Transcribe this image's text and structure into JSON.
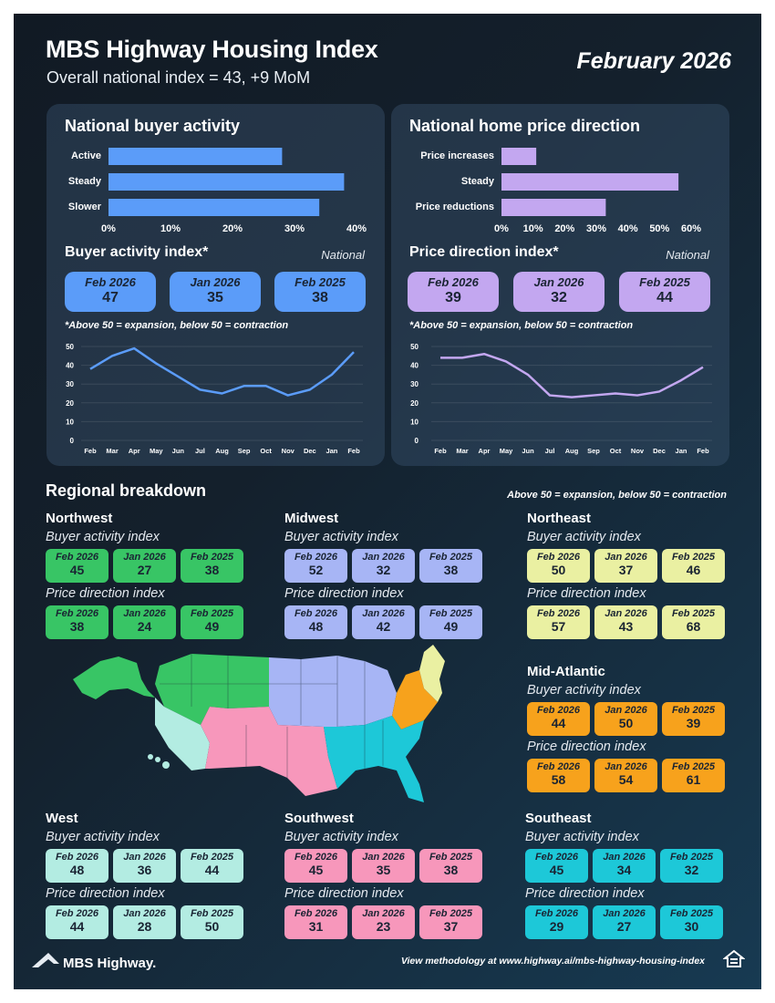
{
  "header": {
    "title": "MBS Highway Housing Index",
    "subtitle": "Overall national index = 43, +9 MoM",
    "date": "February 2026"
  },
  "colors": {
    "blue": "#5b9cf9",
    "purple": "#c3a7f0",
    "green": "#38c565",
    "periwinkle": "#a7b5f5",
    "yellow": "#eaf0a2",
    "orange": "#f7a21c",
    "mint": "#b3ece2",
    "pink": "#f797bb",
    "cyan": "#1dc8d8"
  },
  "buyer_panel": {
    "title": "National buyer activity",
    "index_title": "Buyer activity index*",
    "national": "National",
    "note": "*Above 50 = expansion, below 50 = contraction",
    "cards": [
      {
        "label": "Feb 2026",
        "value": "47"
      },
      {
        "label": "Jan 2026",
        "value": "35"
      },
      {
        "label": "Feb 2025",
        "value": "38"
      }
    ]
  },
  "price_panel": {
    "title": "National home price direction",
    "index_title": "Price direction index*",
    "national": "National",
    "note": "*Above 50 = expansion, below 50 = contraction",
    "cards": [
      {
        "label": "Feb 2026",
        "value": "39"
      },
      {
        "label": "Jan 2026",
        "value": "32"
      },
      {
        "label": "Feb 2025",
        "value": "44"
      }
    ]
  },
  "chart_data": [
    {
      "type": "bar",
      "orientation": "horizontal",
      "title": "National buyer activity",
      "categories": [
        "Active",
        "Steady",
        "Slower"
      ],
      "values": [
        28,
        38,
        34
      ],
      "xlim": [
        0,
        40
      ],
      "ticks": [
        "0%",
        "10%",
        "20%",
        "30%",
        "40%"
      ],
      "tick_values": [
        0,
        10,
        20,
        30,
        40
      ]
    },
    {
      "type": "bar",
      "orientation": "horizontal",
      "title": "National home price direction",
      "categories": [
        "Price increases",
        "Steady",
        "Price reductions"
      ],
      "values": [
        11,
        56,
        33
      ],
      "xlim": [
        0,
        60
      ],
      "ticks": [
        "0%",
        "10%",
        "20%",
        "30%",
        "40%",
        "50%",
        "60%"
      ],
      "tick_values": [
        0,
        10,
        20,
        30,
        40,
        50,
        60
      ]
    },
    {
      "type": "line",
      "title": "Buyer activity index",
      "x": [
        "Feb",
        "Mar",
        "Apr",
        "May",
        "Jun",
        "Jul",
        "Aug",
        "Sep",
        "Oct",
        "Nov",
        "Dec",
        "Jan",
        "Feb"
      ],
      "values": [
        38,
        45,
        49,
        41,
        34,
        27,
        25,
        29,
        29,
        24,
        27,
        35,
        47
      ],
      "ylim": [
        0,
        50
      ],
      "yticks": [
        "0",
        "10",
        "20",
        "30",
        "40",
        "50"
      ],
      "ytick_values": [
        0,
        10,
        20,
        30,
        40,
        50
      ]
    },
    {
      "type": "line",
      "title": "Price direction index",
      "x": [
        "Feb",
        "Mar",
        "Apr",
        "May",
        "Jun",
        "Jul",
        "Aug",
        "Sep",
        "Oct",
        "Nov",
        "Dec",
        "Jan",
        "Feb"
      ],
      "values": [
        44,
        44,
        46,
        42,
        35,
        24,
        23,
        24,
        25,
        24,
        26,
        32,
        39
      ],
      "ylim": [
        0,
        50
      ],
      "yticks": [
        "0",
        "10",
        "20",
        "30",
        "40",
        "50"
      ],
      "ytick_values": [
        0,
        10,
        20,
        30,
        40,
        50
      ]
    }
  ],
  "regional": {
    "title": "Regional breakdown",
    "note": "Above 50 = expansion, below 50 = contraction",
    "buyer_label": "Buyer activity index",
    "price_label": "Price direction index",
    "regions": [
      {
        "name": "Northwest",
        "color": "#38c565",
        "buyer": [
          {
            "label": "Feb 2026",
            "value": "45"
          },
          {
            "label": "Jan 2026",
            "value": "27"
          },
          {
            "label": "Feb 2025",
            "value": "38"
          }
        ],
        "price": [
          {
            "label": "Feb 2026",
            "value": "38"
          },
          {
            "label": "Jan 2026",
            "value": "24"
          },
          {
            "label": "Feb 2025",
            "value": "49"
          }
        ]
      },
      {
        "name": "Midwest",
        "color": "#a7b5f5",
        "buyer": [
          {
            "label": "Feb 2026",
            "value": "52"
          },
          {
            "label": "Jan 2026",
            "value": "32"
          },
          {
            "label": "Feb 2025",
            "value": "38"
          }
        ],
        "price": [
          {
            "label": "Feb 2026",
            "value": "48"
          },
          {
            "label": "Jan 2026",
            "value": "42"
          },
          {
            "label": "Feb 2025",
            "value": "49"
          }
        ]
      },
      {
        "name": "Northeast",
        "color": "#eaf0a2",
        "buyer": [
          {
            "label": "Feb 2026",
            "value": "50"
          },
          {
            "label": "Jan 2026",
            "value": "37"
          },
          {
            "label": "Feb 2025",
            "value": "46"
          }
        ],
        "price": [
          {
            "label": "Feb 2026",
            "value": "57"
          },
          {
            "label": "Jan 2026",
            "value": "43"
          },
          {
            "label": "Feb 2025",
            "value": "68"
          }
        ]
      },
      {
        "name": "Mid-Atlantic",
        "color": "#f7a21c",
        "buyer": [
          {
            "label": "Feb 2026",
            "value": "44"
          },
          {
            "label": "Jan 2026",
            "value": "50"
          },
          {
            "label": "Feb 2025",
            "value": "39"
          }
        ],
        "price": [
          {
            "label": "Feb 2026",
            "value": "58"
          },
          {
            "label": "Jan 2026",
            "value": "54"
          },
          {
            "label": "Feb 2025",
            "value": "61"
          }
        ]
      },
      {
        "name": "West",
        "color": "#b3ece2",
        "buyer": [
          {
            "label": "Feb 2026",
            "value": "48"
          },
          {
            "label": "Jan 2026",
            "value": "36"
          },
          {
            "label": "Feb 2025",
            "value": "44"
          }
        ],
        "price": [
          {
            "label": "Feb 2026",
            "value": "44"
          },
          {
            "label": "Jan 2026",
            "value": "28"
          },
          {
            "label": "Feb 2025",
            "value": "50"
          }
        ]
      },
      {
        "name": "Southwest",
        "color": "#f797bb",
        "buyer": [
          {
            "label": "Feb 2026",
            "value": "45"
          },
          {
            "label": "Jan 2026",
            "value": "35"
          },
          {
            "label": "Feb 2025",
            "value": "38"
          }
        ],
        "price": [
          {
            "label": "Feb 2026",
            "value": "31"
          },
          {
            "label": "Jan 2026",
            "value": "23"
          },
          {
            "label": "Feb 2025",
            "value": "37"
          }
        ]
      },
      {
        "name": "Southeast",
        "color": "#1dc8d8",
        "buyer": [
          {
            "label": "Feb 2026",
            "value": "45"
          },
          {
            "label": "Jan 2026",
            "value": "34"
          },
          {
            "label": "Feb 2025",
            "value": "32"
          }
        ],
        "price": [
          {
            "label": "Feb 2026",
            "value": "29"
          },
          {
            "label": "Jan 2026",
            "value": "27"
          },
          {
            "label": "Feb 2025",
            "value": "30"
          }
        ]
      }
    ]
  },
  "footer": {
    "logo_text": "MBS Highway.",
    "methodology": "View methodology at www.highway.ai/mbs-highway-housing-index"
  }
}
